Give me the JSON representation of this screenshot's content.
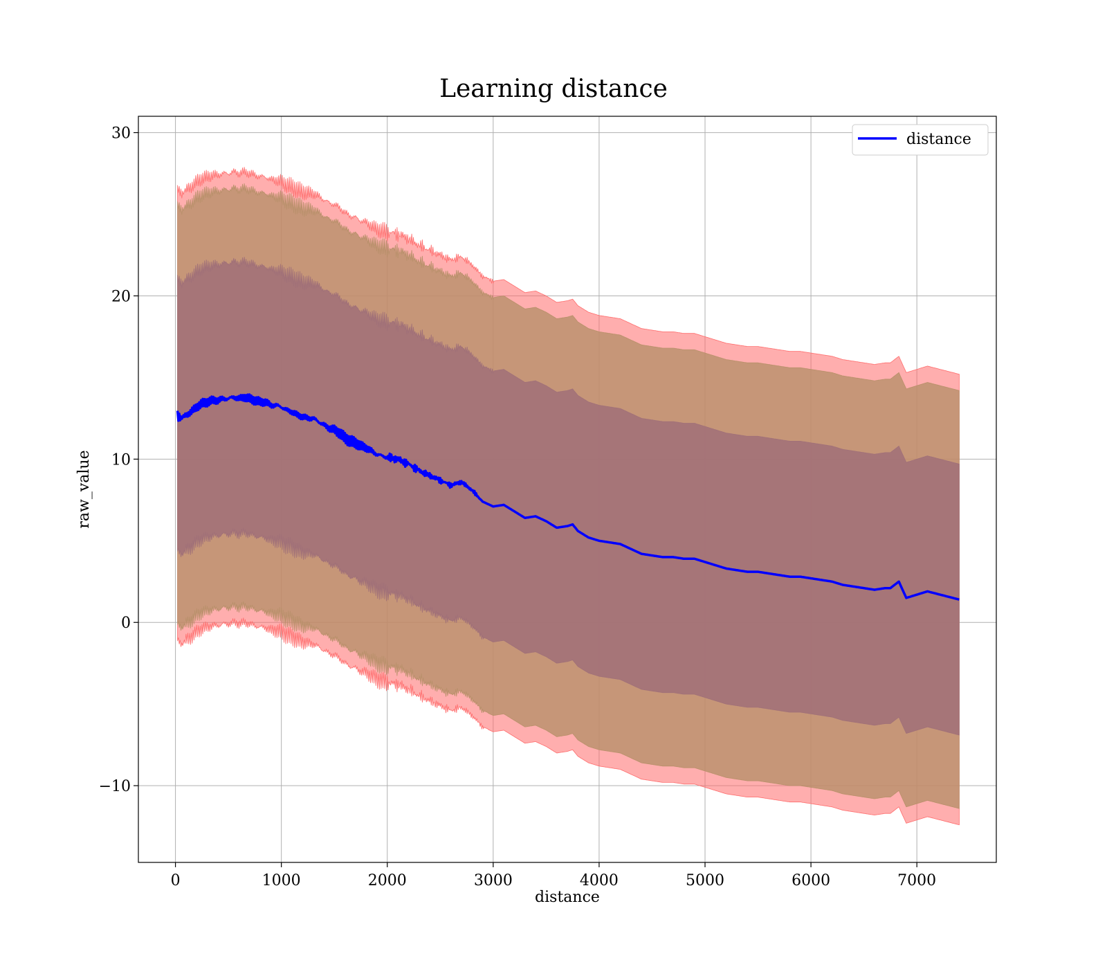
{
  "chart_data": {
    "type": "area",
    "title": "Learning distance",
    "xlabel": "distance",
    "ylabel": "raw_value",
    "xlim": [
      -350,
      7750
    ],
    "ylim": [
      -14.7,
      31
    ],
    "xticks": [
      0,
      1000,
      2000,
      3000,
      4000,
      5000,
      6000,
      7000
    ],
    "yticks": [
      -10,
      0,
      10,
      20,
      30
    ],
    "xtick_labels": [
      "0",
      "1000",
      "2000",
      "3000",
      "4000",
      "5000",
      "6000",
      "7000"
    ],
    "ytick_labels": [
      "−10",
      "0",
      "10",
      "20",
      "30"
    ],
    "grid": true,
    "legend": {
      "position": "top-right",
      "entries": [
        "distance"
      ]
    },
    "colors": {
      "line": "#0000ff",
      "outer_band": "#ff6b6b",
      "mid_band": "#b8906a",
      "inner_band": "#a07078",
      "grid": "#b0b0b0"
    },
    "series": [
      {
        "name": "distance",
        "x": [
          20,
          60,
          100,
          150,
          200,
          250,
          300,
          350,
          400,
          450,
          500,
          550,
          600,
          650,
          700,
          750,
          800,
          850,
          900,
          950,
          1000,
          1050,
          1100,
          1150,
          1200,
          1250,
          1300,
          1350,
          1400,
          1450,
          1500,
          1550,
          1600,
          1650,
          1700,
          1750,
          1800,
          1850,
          1900,
          1950,
          2000,
          2100,
          2200,
          2300,
          2400,
          2500,
          2600,
          2700,
          2800,
          2900,
          3000,
          3100,
          3200,
          3300,
          3400,
          3500,
          3600,
          3700,
          3750,
          3800,
          3900,
          4000,
          4100,
          4200,
          4300,
          4400,
          4500,
          4600,
          4700,
          4800,
          4900,
          5000,
          5100,
          5200,
          5300,
          5400,
          5500,
          5600,
          5700,
          5800,
          5900,
          6000,
          6100,
          6200,
          6300,
          6400,
          6500,
          6600,
          6700,
          6750,
          6830,
          6900,
          7100,
          7400
        ],
        "y": [
          12.7,
          12.5,
          12.7,
          12.9,
          13.2,
          13.4,
          13.5,
          13.6,
          13.6,
          13.7,
          13.7,
          13.8,
          13.7,
          13.8,
          13.7,
          13.6,
          13.5,
          13.5,
          13.3,
          13.3,
          13.2,
          13.0,
          12.9,
          12.7,
          12.6,
          12.5,
          12.5,
          12.3,
          12.1,
          11.9,
          11.8,
          11.6,
          11.3,
          11.1,
          11.0,
          10.8,
          10.7,
          10.5,
          10.3,
          10.2,
          10.1,
          10.0,
          9.7,
          9.3,
          9.0,
          8.7,
          8.4,
          8.6,
          8.1,
          7.4,
          7.1,
          7.2,
          6.8,
          6.4,
          6.5,
          6.2,
          5.8,
          5.9,
          6.0,
          5.6,
          5.2,
          5.0,
          4.9,
          4.8,
          4.5,
          4.2,
          4.1,
          4.0,
          4.0,
          3.9,
          3.9,
          3.7,
          3.5,
          3.3,
          3.2,
          3.1,
          3.1,
          3.0,
          2.9,
          2.8,
          2.8,
          2.7,
          2.6,
          2.5,
          2.3,
          2.2,
          2.1,
          2.0,
          2.1,
          2.1,
          2.5,
          1.5,
          1.9,
          1.4
        ]
      }
    ],
    "bands": [
      {
        "name": "outer",
        "upper_offset": 13.8,
        "lower_offset": 13.8,
        "note_sd_multiple": 3
      },
      {
        "name": "middle",
        "upper_offset": 12.8,
        "lower_offset": 12.8
      },
      {
        "name": "inner",
        "upper_offset": 8.3,
        "lower_offset": 8.3
      }
    ]
  }
}
